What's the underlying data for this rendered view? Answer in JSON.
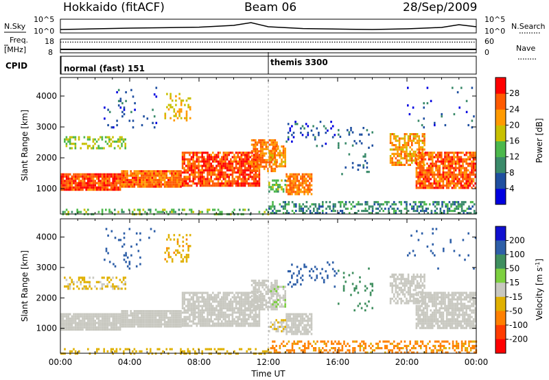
{
  "header": {
    "radar": "Hokkaido (fitACF)",
    "beam": "Beam 06",
    "date": "28/Sep/2009"
  },
  "strip_labels": {
    "nsky": "N.Sky",
    "freq_line1": "Freq.",
    "freq_line2": "[MHz]",
    "cpid": "CPID",
    "nsearch": "N.Search",
    "nave": "Nave",
    "nsky_ticks": [
      "10^5",
      "10^0"
    ],
    "freq_ticks": [
      "18",
      "8"
    ],
    "nave_ticks": [
      "60",
      "0"
    ],
    "nsearch_ticks": [
      "10^5",
      "10^0"
    ]
  },
  "cpid_segments": [
    {
      "label": "normal (fast) 151",
      "start_hour": 0
    },
    {
      "label": "themis 3300",
      "start_hour": 12
    }
  ],
  "chart_data": [
    {
      "type": "heatmap",
      "title": "",
      "quantity": "Power",
      "xlabel": "",
      "ylabel": "Slant Range [km]",
      "xlim_hours": [
        0,
        24
      ],
      "ylim": [
        180,
        4600
      ],
      "x_ticks": [
        "00:00",
        "04:00",
        "08:00",
        "12:00",
        "16:00",
        "20:00",
        "00:00"
      ],
      "y_ticks": [
        1000,
        2000,
        3000,
        4000
      ],
      "colorbar": {
        "label": "Power [dB]",
        "ticks": [
          4,
          8,
          12,
          16,
          20,
          24,
          28
        ],
        "range": [
          0,
          32
        ],
        "colors": [
          "#0000e0",
          "#1f4fa0",
          "#3a8a6a",
          "#4cb84c",
          "#c8c000",
          "#ff9a00",
          "#ff5a00",
          "#ff0000"
        ]
      }
    },
    {
      "type": "heatmap",
      "title": "",
      "quantity": "Velocity",
      "xlabel": "Time UT",
      "ylabel": "Slant Range [km]",
      "xlim_hours": [
        0,
        24
      ],
      "ylim": [
        180,
        4600
      ],
      "x_ticks": [
        "00:00",
        "04:00",
        "08:00",
        "12:00",
        "16:00",
        "20:00",
        "00:00"
      ],
      "y_ticks": [
        1000,
        2000,
        3000,
        4000
      ],
      "colorbar": {
        "label": "Velocity [m s",
        "label_sup": "-1",
        "label_end": "]",
        "ticks": [
          "200",
          "100",
          "50",
          "15",
          "-15",
          "-50",
          "-100",
          "-200"
        ],
        "colors": [
          "#1010d0",
          "#2e5fa8",
          "#3f8f5f",
          "#7dd040",
          "#c8c8c0",
          "#e0b000",
          "#ff8000",
          "#ff3c00",
          "#ff0000"
        ]
      }
    }
  ],
  "scatter_regions": [
    {
      "hours": [
        0.0,
        3.5
      ],
      "km": [
        950,
        1500
      ],
      "level": 27,
      "vel": 0,
      "density": 0.95
    },
    {
      "hours": [
        3.5,
        7.0
      ],
      "km": [
        1050,
        1600
      ],
      "level": 25,
      "vel": 0,
      "density": 0.95
    },
    {
      "hours": [
        7.0,
        11.5
      ],
      "km": [
        1100,
        2200
      ],
      "level": 27,
      "vel": 0,
      "density": 0.8
    },
    {
      "hours": [
        11.0,
        12.5
      ],
      "km": [
        1600,
        2600
      ],
      "level": 24,
      "vel": 0,
      "density": 0.75
    },
    {
      "hours": [
        12.0,
        13.0
      ],
      "km": [
        1700,
        2400
      ],
      "level": 22,
      "vel": 5,
      "density": 0.6
    },
    {
      "hours": [
        13.0,
        14.5
      ],
      "km": [
        800,
        1500
      ],
      "level": 24,
      "vel": 0,
      "density": 0.8
    },
    {
      "hours": [
        12.0,
        13.0
      ],
      "km": [
        900,
        1300
      ],
      "level": 15,
      "vel": -10,
      "density": 0.5
    },
    {
      "hours": [
        19.0,
        21.0
      ],
      "km": [
        1800,
        2800
      ],
      "level": 22,
      "vel": 0,
      "density": 0.65
    },
    {
      "hours": [
        20.5,
        24.0
      ],
      "km": [
        1000,
        2200
      ],
      "level": 26,
      "vel": 0,
      "density": 0.8
    },
    {
      "hours": [
        0.2,
        3.8
      ],
      "km": [
        2300,
        2700
      ],
      "level": 16,
      "vel": -20,
      "density": 0.4
    },
    {
      "hours": [
        6.0,
        7.5
      ],
      "km": [
        3200,
        4100
      ],
      "level": 20,
      "vel": -40,
      "density": 0.25
    },
    {
      "hours": [
        2.5,
        5.5
      ],
      "km": [
        3000,
        4300
      ],
      "level": 6,
      "vel": 120,
      "density": 0.07
    },
    {
      "hours": [
        13.0,
        16.0
      ],
      "km": [
        2400,
        3200
      ],
      "level": 5,
      "vel": 150,
      "density": 0.12
    },
    {
      "hours": [
        16.0,
        18.0
      ],
      "km": [
        1500,
        3000
      ],
      "level": 8,
      "vel": 80,
      "density": 0.08
    },
    {
      "hours": [
        20.0,
        24.0
      ],
      "km": [
        3000,
        4300
      ],
      "level": 6,
      "vel": 140,
      "density": 0.05
    },
    {
      "hours": [
        12.0,
        24.0
      ],
      "km": [
        180,
        600
      ],
      "level": 10,
      "vel": -60,
      "density": 0.45
    },
    {
      "hours": [
        0.0,
        12.0
      ],
      "km": [
        180,
        350
      ],
      "level": 14,
      "vel": -30,
      "density": 0.3
    }
  ],
  "radar_time_series": {
    "nsky_hours": [
      0,
      2,
      4,
      6,
      8,
      10,
      11,
      12,
      14,
      16,
      18,
      20,
      21,
      22,
      23,
      24
    ],
    "nsky_level": [
      0.25,
      0.3,
      0.35,
      0.38,
      0.42,
      0.55,
      0.75,
      0.45,
      0.32,
      0.28,
      0.25,
      0.3,
      0.35,
      0.4,
      0.6,
      0.45
    ],
    "freq_level": 0.25,
    "nave_level": 0.78
  },
  "colors": {
    "frame": "#000000",
    "dashed_marker": "#b0b0b0"
  }
}
